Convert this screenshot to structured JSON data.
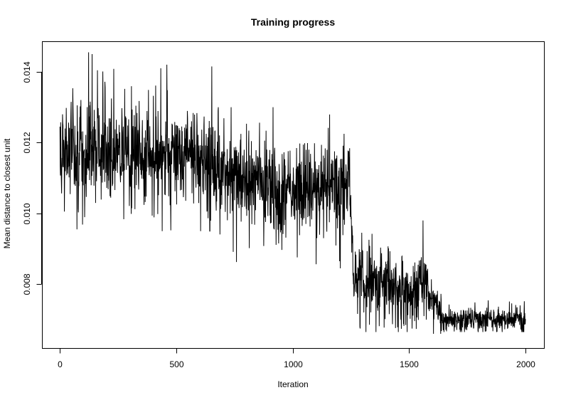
{
  "chart_data": {
    "type": "line",
    "title": "Training progress",
    "xlabel": "Iteration",
    "ylabel": "Mean distance to closest unit",
    "xlim": [
      0,
      2000
    ],
    "ylim": [
      0.00655,
      0.01455
    ],
    "x_ticks": [
      {
        "value": 0,
        "label": "0"
      },
      {
        "value": 500,
        "label": "500"
      },
      {
        "value": 1000,
        "label": "1000"
      },
      {
        "value": 1500,
        "label": "1500"
      },
      {
        "value": 2000,
        "label": "2000"
      }
    ],
    "y_ticks": [
      {
        "value": 0.008,
        "label": "0.008"
      },
      {
        "value": 0.01,
        "label": "0.010"
      },
      {
        "value": 0.012,
        "label": "0.012"
      },
      {
        "value": 0.014,
        "label": "0.014"
      }
    ],
    "grid": false,
    "series": [
      {
        "name": "mean distance",
        "color": "#000000",
        "n_points": 2000,
        "x_start": 1,
        "x_end": 2000,
        "segments": [
          {
            "x0": 1,
            "x1": 400,
            "mean_start": 0.0118,
            "mean_end": 0.0117,
            "spread": 0.0007,
            "max": 0.01455,
            "min": 0.00955
          },
          {
            "x0": 400,
            "x1": 660,
            "mean_start": 0.0117,
            "mean_end": 0.0115,
            "spread": 0.0007,
            "max": 0.0142,
            "min": 0.0095
          },
          {
            "x0": 660,
            "x1": 1000,
            "mean_start": 0.0112,
            "mean_end": 0.0106,
            "spread": 0.00065,
            "max": 0.013,
            "min": 0.00835
          },
          {
            "x0": 1000,
            "x1": 1245,
            "mean_start": 0.0106,
            "mean_end": 0.0108,
            "spread": 0.0006,
            "max": 0.0128,
            "min": 0.0081
          },
          {
            "x0": 1245,
            "x1": 1260,
            "mean_start": 0.0108,
            "mean_end": 0.0082,
            "spread": 0.0004,
            "max": 0.0112,
            "min": 0.007
          },
          {
            "x0": 1260,
            "x1": 1540,
            "mean_start": 0.0081,
            "mean_end": 0.0078,
            "spread": 0.0005,
            "max": 0.0097,
            "min": 0.00665
          },
          {
            "x0": 1540,
            "x1": 1580,
            "mean_start": 0.0083,
            "mean_end": 0.0082,
            "spread": 0.0005,
            "max": 0.0098,
            "min": 0.007
          },
          {
            "x0": 1580,
            "x1": 1640,
            "mean_start": 0.0078,
            "mean_end": 0.0071,
            "spread": 0.0003,
            "max": 0.0083,
            "min": 0.0066
          },
          {
            "x0": 1640,
            "x1": 2000,
            "mean_start": 0.007,
            "mean_end": 0.007,
            "spread": 0.00017,
            "max": 0.0076,
            "min": 0.00665
          }
        ]
      }
    ]
  }
}
